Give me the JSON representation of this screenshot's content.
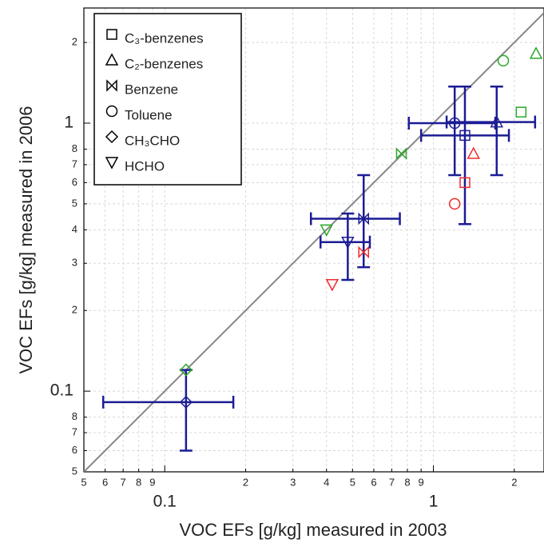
{
  "chart_data": {
    "type": "scatter",
    "x_label": "VOC EFs [g/kg] measured in 2003",
    "y_label": "VOC EFs [g/kg] measured in 2006",
    "log_x": true,
    "log_y": true,
    "grid": true,
    "identity_line": true,
    "identity_color": "#888888",
    "legend": "upper left",
    "xlim": [
      0.05,
      2.58
    ],
    "ylim": [
      0.05,
      2.69
    ],
    "xticks": [
      {
        "value": 0.05,
        "label": "5"
      },
      {
        "value": 0.06,
        "label": "6"
      },
      {
        "value": 0.07,
        "label": "7"
      },
      {
        "value": 0.08,
        "label": "8"
      },
      {
        "value": 0.09,
        "label": "9"
      },
      0.1,
      {
        "value": 0.2,
        "label": "2"
      },
      {
        "value": 0.3,
        "label": "3"
      },
      {
        "value": 0.4,
        "label": "4"
      },
      {
        "value": 0.5,
        "label": "5"
      },
      {
        "value": 0.6,
        "label": "6"
      },
      {
        "value": 0.7,
        "label": "7"
      },
      {
        "value": 0.8,
        "label": "8"
      },
      {
        "value": 0.9,
        "label": "9"
      },
      1,
      {
        "value": 2,
        "label": "2"
      }
    ],
    "yticks": [
      {
        "value": 0.05,
        "label": "5"
      },
      {
        "value": 0.06,
        "label": "6"
      },
      {
        "value": 0.07,
        "label": "7"
      },
      {
        "value": 0.08,
        "label": "8"
      },
      0.1,
      {
        "value": 0.2,
        "label": "2"
      },
      {
        "value": 0.3,
        "label": "3"
      },
      {
        "value": 0.4,
        "label": "4"
      },
      {
        "value": 0.5,
        "label": "5"
      },
      {
        "value": 0.6,
        "label": "6"
      },
      {
        "value": 0.7,
        "label": "7"
      },
      {
        "value": 0.8,
        "label": "8"
      },
      1,
      {
        "value": 2,
        "label": "2"
      }
    ],
    "point_colors": [
      "#1c1c94",
      "#f02a2a",
      "#2aa82a"
    ],
    "series": [
      {
        "name": "C₃-benzenes",
        "marker": "square",
        "x": [
          1.31,
          1.31,
          2.12
        ],
        "values": [
          0.9,
          0.6,
          1.1
        ],
        "x_errors": [
          [
            0.9,
            1.91
          ],
          null,
          null
        ],
        "y_errors": [
          [
            0.42,
            1.37
          ],
          null,
          null
        ]
      },
      {
        "name": "C₂-benzenes",
        "marker": "triangle",
        "x": [
          1.72,
          1.41,
          2.41
        ],
        "values": [
          1.01,
          0.77,
          1.82
        ],
        "x_errors": [
          [
            1.12,
            2.39
          ],
          null,
          null
        ],
        "y_errors": [
          [
            0.64,
            1.37
          ],
          null,
          null
        ]
      },
      {
        "name": "Benzene",
        "marker": "bowtie",
        "x": [
          0.55,
          0.55,
          0.76
        ],
        "values": [
          0.44,
          0.33,
          0.77
        ],
        "x_errors": [
          [
            0.35,
            0.75
          ],
          null,
          null
        ],
        "y_errors": [
          [
            0.29,
            0.64
          ],
          null,
          null
        ]
      },
      {
        "name": "Toluene",
        "marker": "circle",
        "x": [
          1.2,
          1.2,
          1.82
        ],
        "values": [
          1.0,
          0.5,
          1.71
        ],
        "x_errors": [
          [
            0.81,
            1.7
          ],
          null,
          null
        ],
        "y_errors": [
          [
            0.64,
            1.37
          ],
          null,
          null
        ]
      },
      {
        "name": "CH₃CHO",
        "marker": "diamond",
        "x": [
          0.12,
          0.12,
          0.12
        ],
        "values": [
          0.091,
          null,
          0.12
        ],
        "x_errors": [
          [
            0.059,
            0.18
          ],
          null,
          null
        ],
        "y_errors": [
          [
            0.06,
            0.12
          ],
          null,
          null
        ]
      },
      {
        "name": "HCHO",
        "marker": "down-triangle",
        "x": [
          0.48,
          0.42,
          0.4
        ],
        "values": [
          0.36,
          0.25,
          0.4
        ],
        "x_errors": [
          [
            0.38,
            0.58
          ],
          null,
          null
        ],
        "y_errors": [
          [
            0.26,
            0.46
          ],
          null,
          null
        ]
      }
    ]
  }
}
